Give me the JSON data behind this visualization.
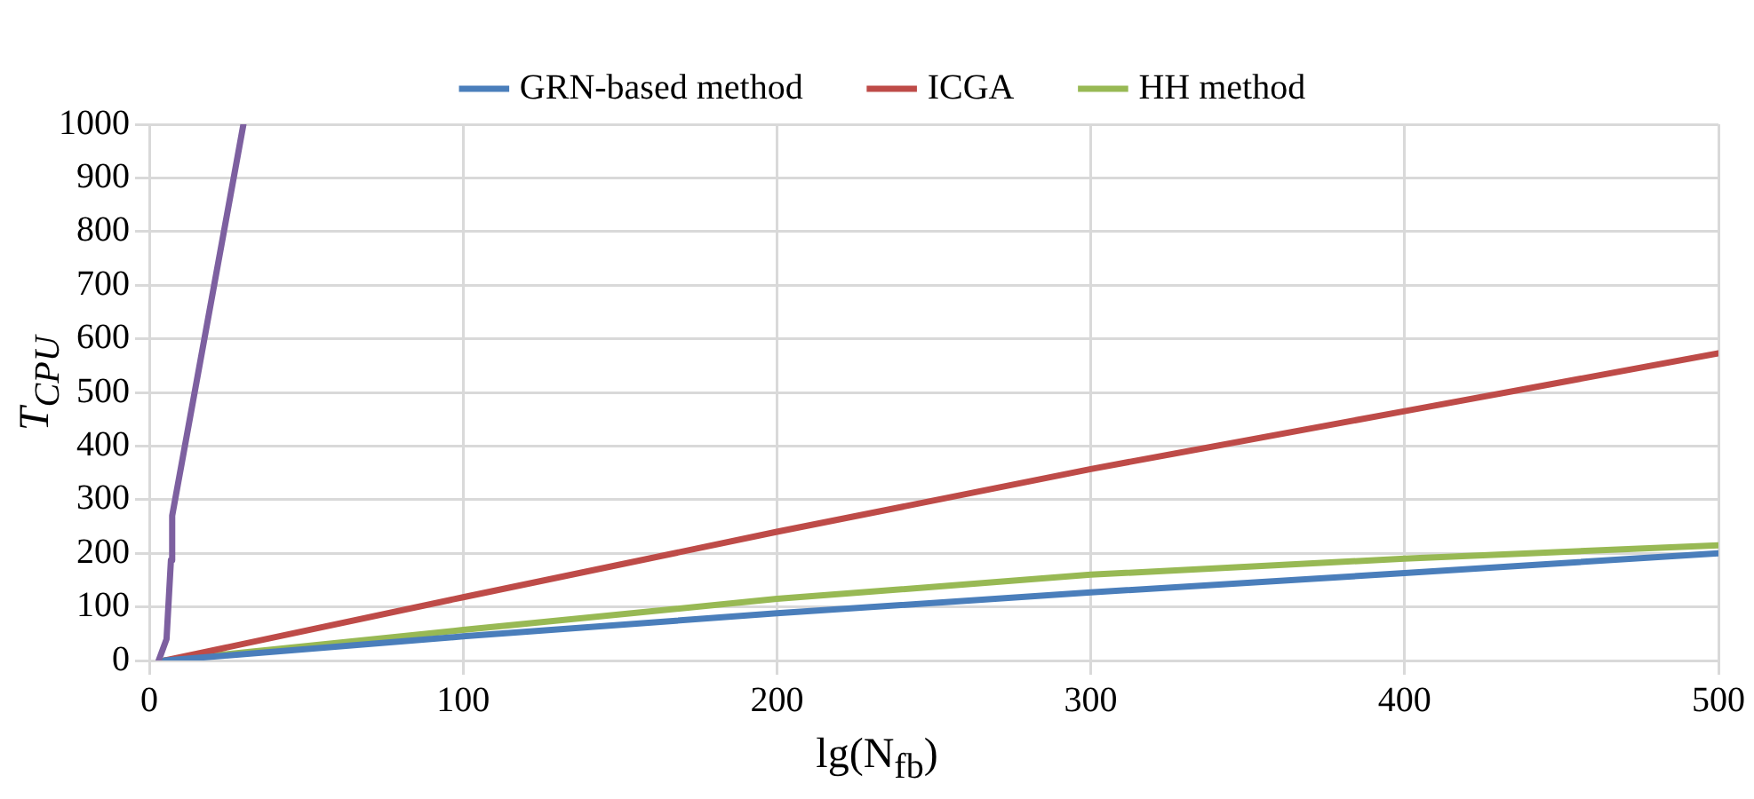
{
  "chart_data": {
    "type": "line",
    "xlabel": "lg(N$_{fb}$)",
    "ylabel": "T$_{CPU}$",
    "xlim": [
      0,
      500
    ],
    "xticks": [
      0,
      100,
      200,
      300,
      400,
      500
    ],
    "ylim": [
      0,
      1000
    ],
    "yticks": [
      0,
      100,
      200,
      300,
      400,
      500,
      600,
      700,
      800,
      900,
      1000
    ],
    "grid": true,
    "legend": "top",
    "marker": "none",
    "line_style": "solid",
    "series": [
      {
        "name": "GRN-based method",
        "color": "#4a7ebb",
        "x": [
          5,
          100,
          200,
          300,
          400,
          500
        ],
        "values": [
          0,
          45,
          88,
          127,
          163,
          200
        ]
      },
      {
        "name": "ICGA",
        "color": "#be4b48",
        "x": [
          5,
          100,
          200,
          300,
          400,
          500
        ],
        "values": [
          0,
          118,
          240,
          357,
          465,
          573
        ]
      },
      {
        "name": "HH method",
        "color": "#98b954",
        "x": [
          5,
          100,
          200,
          300,
          400,
          500
        ],
        "values": [
          0,
          57,
          115,
          160,
          190,
          215
        ]
      },
      {
        "color": "#7d60a0",
        "x": [
          3,
          5.5,
          6.9,
          7.3,
          30
        ],
        "values": [
          0,
          40,
          187,
          270,
          1000
        ]
      }
    ]
  }
}
